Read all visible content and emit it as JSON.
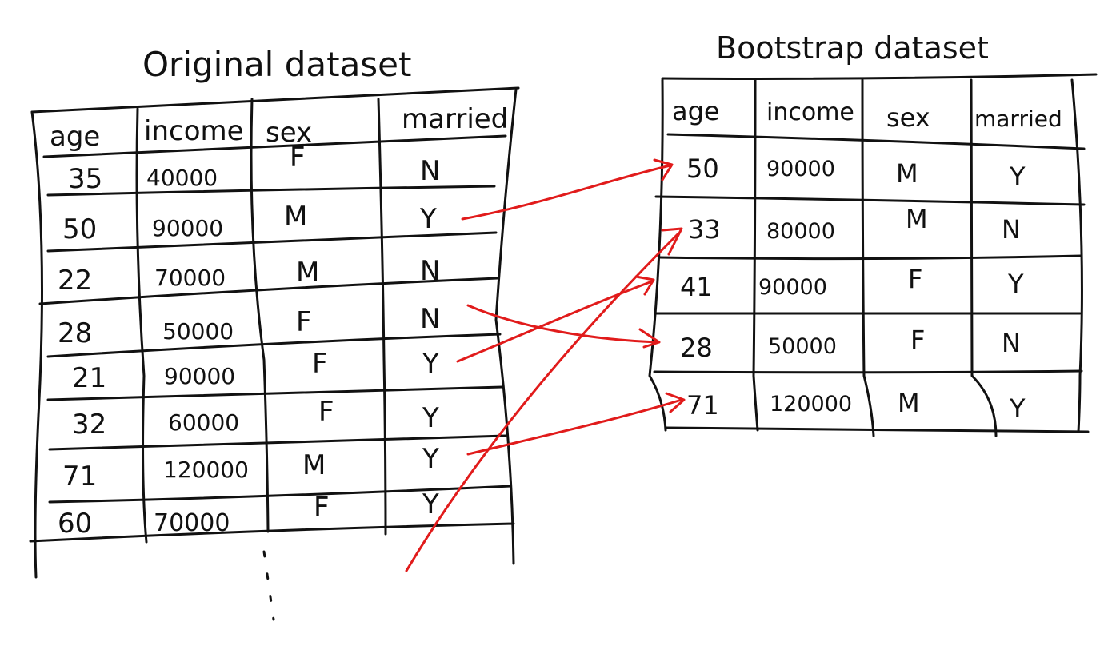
{
  "original": {
    "title": "Original dataset",
    "headers": [
      "age",
      "income",
      "sex",
      "married"
    ],
    "rows": [
      [
        "35",
        "40000",
        "F",
        "N"
      ],
      [
        "50",
        "90000",
        "M",
        "Y"
      ],
      [
        "22",
        "70000",
        "M",
        "N"
      ],
      [
        "28",
        "50000",
        "F",
        "N"
      ],
      [
        "21",
        "90000",
        "F",
        "Y"
      ],
      [
        "32",
        "60000",
        "F",
        "Y"
      ],
      [
        "71",
        "120000",
        "M",
        "Y"
      ],
      [
        "60",
        "70000",
        "F",
        "Y"
      ]
    ],
    "ellipsis": "⋮"
  },
  "bootstrap": {
    "title": "Bootstrap dataset",
    "headers": [
      "age",
      "income",
      "sex",
      "married"
    ],
    "rows": [
      [
        "50",
        "90000",
        "M",
        "Y"
      ],
      [
        "33",
        "80000",
        "M",
        "N"
      ],
      [
        "41",
        "90000",
        "F",
        "Y"
      ],
      [
        "28",
        "50000",
        "F",
        "N"
      ],
      [
        "71",
        "120000",
        "M",
        "Y"
      ]
    ]
  },
  "colors": {
    "ink": "#111111",
    "arrow": "#e11b1b"
  }
}
